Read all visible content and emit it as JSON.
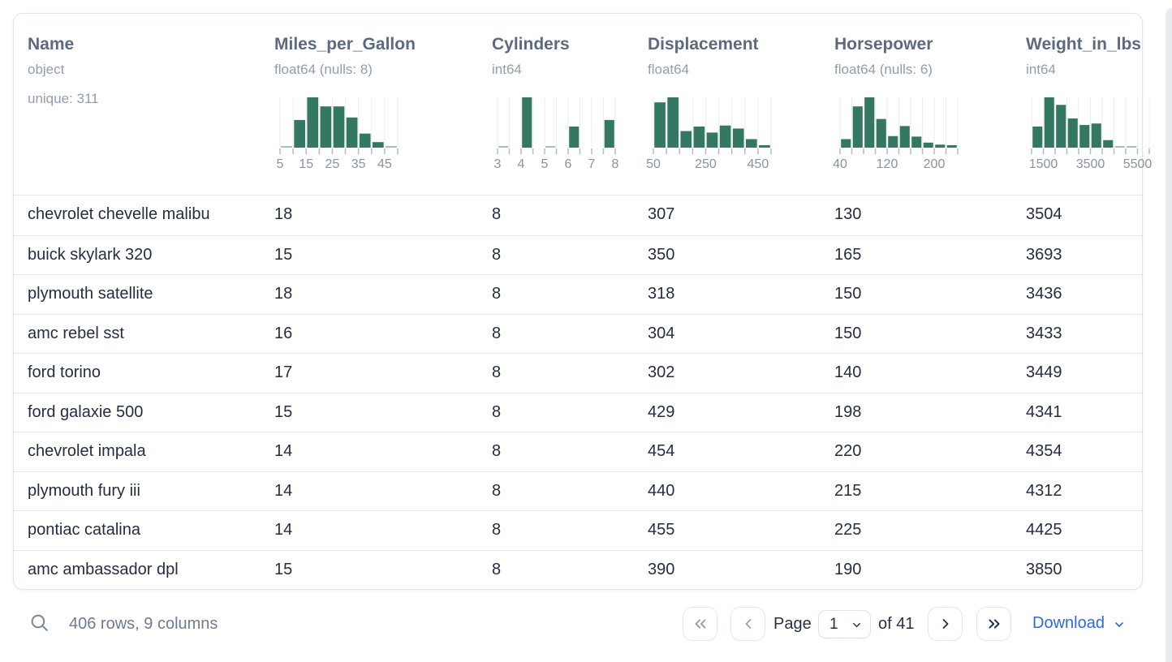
{
  "colors": {
    "histogram_bar": "#347864",
    "histogram_gridline": "#ecedf0",
    "histogram_tick": "#b4bac3",
    "tick_label": "#8a939e",
    "header_title": "#5c6a80",
    "header_subtext": "#939daa",
    "row_text": "#242e40",
    "row_separator": "#e4e9f0",
    "card_border": "#dce3ec",
    "link_blue": "#2c69e0",
    "icon_enabled": "#22304a",
    "icon_disabled": "#98a2b0"
  },
  "icons": {
    "search": "magnifier",
    "first_page": "chevrons-left",
    "prev_page": "chevron-left",
    "next_page": "chevron-right",
    "last_page": "chevrons-right",
    "page_select": "chevron-down",
    "download": "chevron-down"
  },
  "table": {
    "columns": [
      {
        "name": "Name",
        "type": "object",
        "extra": "unique: 311",
        "histogram": null
      },
      {
        "name": "Miles_per_Gallon",
        "type": "float64 (nulls: 8)",
        "extra": null,
        "histogram": {
          "ticks": 10,
          "labels": [
            {
              "text": "5",
              "tick": 0
            },
            {
              "text": "15",
              "tick": 2
            },
            {
              "text": "25",
              "tick": 4
            },
            {
              "text": "35",
              "tick": 6
            },
            {
              "text": "45",
              "tick": 8
            }
          ],
          "bars": [
            [
              0,
              1,
              0.03
            ],
            [
              1,
              2,
              0.55
            ],
            [
              2,
              3,
              1.0
            ],
            [
              3,
              4,
              0.82
            ],
            [
              4,
              5,
              0.82
            ],
            [
              5,
              6,
              0.6
            ],
            [
              6,
              7,
              0.28
            ],
            [
              7,
              8,
              0.11
            ],
            [
              8,
              9,
              0.03
            ]
          ]
        }
      },
      {
        "name": "Cylinders",
        "type": "int64",
        "extra": null,
        "histogram": {
          "ticks": 11,
          "labels": [
            {
              "text": "3",
              "tick": 0
            },
            {
              "text": "4",
              "tick": 2
            },
            {
              "text": "5",
              "tick": 4
            },
            {
              "text": "6",
              "tick": 6
            },
            {
              "text": "7",
              "tick": 8
            },
            {
              "text": "8",
              "tick": 10
            }
          ],
          "bars": [
            [
              0,
              1,
              0.03
            ],
            [
              2,
              3,
              1.0
            ],
            [
              4,
              5,
              0.02
            ],
            [
              6,
              7,
              0.42
            ],
            [
              9,
              10,
              0.55
            ]
          ]
        }
      },
      {
        "name": "Displacement",
        "type": "float64",
        "extra": null,
        "histogram": {
          "ticks": 10,
          "labels": [
            {
              "text": "50",
              "tick": 0
            },
            {
              "text": "250",
              "tick": 4
            },
            {
              "text": "450",
              "tick": 8
            }
          ],
          "bars": [
            [
              0,
              1,
              0.9
            ],
            [
              1,
              2,
              1.0
            ],
            [
              2,
              3,
              0.33
            ],
            [
              3,
              4,
              0.42
            ],
            [
              4,
              5,
              0.3
            ],
            [
              5,
              6,
              0.44
            ],
            [
              6,
              7,
              0.38
            ],
            [
              7,
              8,
              0.17
            ],
            [
              8,
              9,
              0.05
            ]
          ]
        }
      },
      {
        "name": "Horsepower",
        "type": "float64 (nulls: 6)",
        "extra": null,
        "histogram": {
          "ticks": 11,
          "labels": [
            {
              "text": "40",
              "tick": 0
            },
            {
              "text": "120",
              "tick": 4
            },
            {
              "text": "200",
              "tick": 8
            }
          ],
          "bars": [
            [
              0,
              1,
              0.17
            ],
            [
              1,
              2,
              0.82
            ],
            [
              2,
              3,
              1.0
            ],
            [
              3,
              4,
              0.57
            ],
            [
              4,
              5,
              0.23
            ],
            [
              5,
              6,
              0.43
            ],
            [
              6,
              7,
              0.22
            ],
            [
              7,
              8,
              0.1
            ],
            [
              8,
              9,
              0.06
            ],
            [
              9,
              10,
              0.05
            ]
          ]
        }
      },
      {
        "name": "Weight_in_lbs",
        "type": "int64",
        "extra": null,
        "histogram": {
          "ticks": 11,
          "labels": [
            {
              "text": "1500",
              "tick": 1
            },
            {
              "text": "3500",
              "tick": 5
            },
            {
              "text": "5500",
              "tick": 9
            }
          ],
          "bars": [
            [
              0,
              1,
              0.42
            ],
            [
              1,
              2,
              1.0
            ],
            [
              2,
              3,
              0.85
            ],
            [
              3,
              4,
              0.58
            ],
            [
              4,
              5,
              0.45
            ],
            [
              5,
              6,
              0.48
            ],
            [
              6,
              7,
              0.15
            ],
            [
              7,
              8,
              0.03
            ],
            [
              8,
              9,
              0.02
            ]
          ]
        }
      }
    ],
    "rows": [
      [
        "chevrolet chevelle malibu",
        "18",
        "8",
        "307",
        "130",
        "3504"
      ],
      [
        "buick skylark 320",
        "15",
        "8",
        "350",
        "165",
        "3693"
      ],
      [
        "plymouth satellite",
        "18",
        "8",
        "318",
        "150",
        "3436"
      ],
      [
        "amc rebel sst",
        "16",
        "8",
        "304",
        "150",
        "3433"
      ],
      [
        "ford torino",
        "17",
        "8",
        "302",
        "140",
        "3449"
      ],
      [
        "ford galaxie 500",
        "15",
        "8",
        "429",
        "198",
        "4341"
      ],
      [
        "chevrolet impala",
        "14",
        "8",
        "454",
        "220",
        "4354"
      ],
      [
        "plymouth fury iii",
        "14",
        "8",
        "440",
        "215",
        "4312"
      ],
      [
        "pontiac catalina",
        "14",
        "8",
        "455",
        "225",
        "4425"
      ],
      [
        "amc ambassador dpl",
        "15",
        "8",
        "390",
        "190",
        "3850"
      ]
    ]
  },
  "footer": {
    "summary": "406 rows, 9 columns",
    "page_label": "Page",
    "page_value": "1",
    "of_label": "of 41",
    "download_label": "Download"
  },
  "chart_data": [
    {
      "type": "bar",
      "title": "Miles_per_Gallon histogram",
      "x_bin_edges": [
        5,
        10,
        15,
        20,
        25,
        30,
        35,
        40,
        45,
        50
      ],
      "values_relative": [
        0.03,
        0.55,
        1.0,
        0.82,
        0.82,
        0.6,
        0.28,
        0.11,
        0.03
      ],
      "tick_labels": [
        "5",
        "15",
        "25",
        "35",
        "45"
      ]
    },
    {
      "type": "bar",
      "title": "Cylinders histogram",
      "x_bins": [
        "3-3.5",
        "4-4.5",
        "5-5.5",
        "6-6.5",
        "7.5-8"
      ],
      "values_relative": [
        0.03,
        1.0,
        0.02,
        0.42,
        0.55
      ],
      "tick_labels": [
        "3",
        "4",
        "5",
        "6",
        "7",
        "8"
      ]
    },
    {
      "type": "bar",
      "title": "Displacement histogram",
      "x_bin_edges": [
        50,
        100,
        150,
        200,
        250,
        300,
        350,
        400,
        450,
        500
      ],
      "values_relative": [
        0.9,
        1.0,
        0.33,
        0.42,
        0.3,
        0.44,
        0.38,
        0.17,
        0.05
      ],
      "tick_labels": [
        "50",
        "250",
        "450"
      ]
    },
    {
      "type": "bar",
      "title": "Horsepower histogram",
      "x_bin_edges": [
        40,
        60,
        80,
        100,
        120,
        140,
        160,
        180,
        200,
        220,
        240
      ],
      "values_relative": [
        0.17,
        0.82,
        1.0,
        0.57,
        0.23,
        0.43,
        0.22,
        0.1,
        0.06,
        0.05
      ],
      "tick_labels": [
        "40",
        "120",
        "200"
      ]
    },
    {
      "type": "bar",
      "title": "Weight_in_lbs histogram",
      "x_bin_edges": [
        1000,
        1500,
        2000,
        2500,
        3000,
        3500,
        4000,
        4500,
        5000,
        5500
      ],
      "values_relative": [
        0.42,
        1.0,
        0.85,
        0.58,
        0.45,
        0.48,
        0.15,
        0.03,
        0.02
      ],
      "tick_labels": [
        "1500",
        "3500",
        "5500"
      ]
    }
  ]
}
